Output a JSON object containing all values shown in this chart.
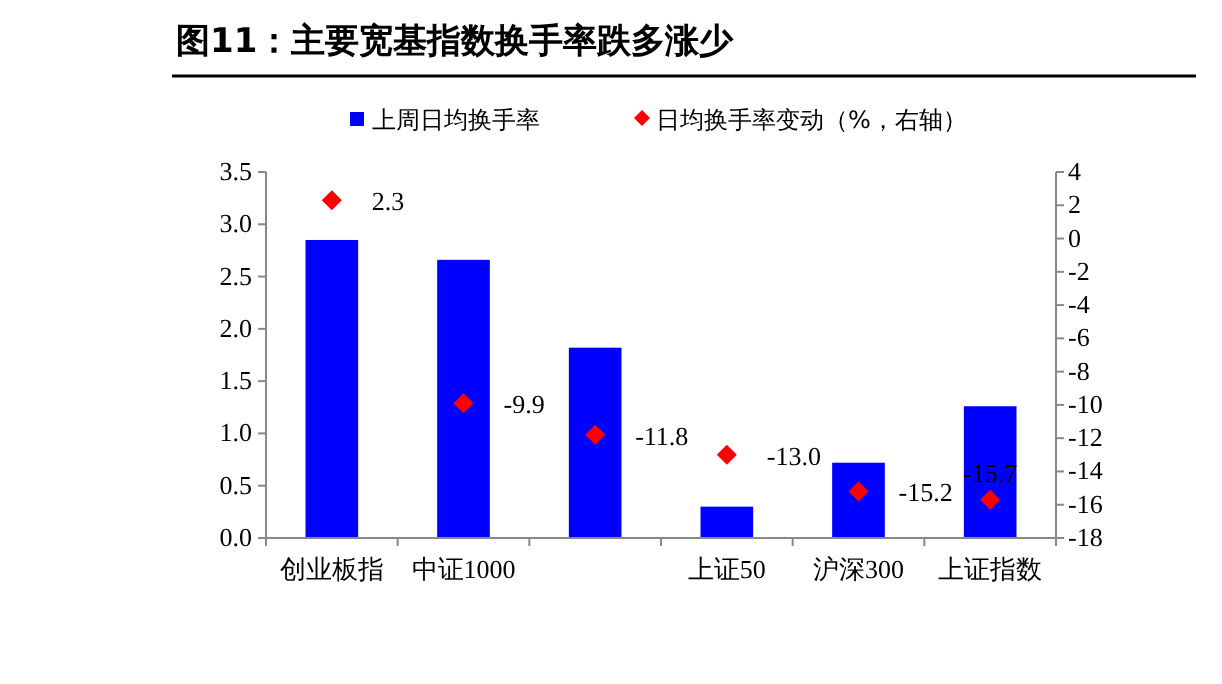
{
  "chart_data": {
    "type": "bar",
    "title": "图11：主要宽基指数换手率跌多涨少",
    "categories": [
      "创业板指",
      "中证1000",
      null,
      "上证50",
      "沪深300",
      "上证指数"
    ],
    "series": [
      {
        "name": "上周日均换手率",
        "color": "#0000ff",
        "values": [
          2.85,
          2.66,
          1.82,
          0.3,
          0.72,
          1.26
        ]
      },
      {
        "name": "日均换手率变动（%，右轴）",
        "type": "scatter",
        "axis": "y2",
        "color": "#ff0000",
        "marker": "diamond",
        "values": [
          2.3,
          -9.9,
          -11.8,
          -13.0,
          -15.2,
          -15.7
        ],
        "value_labels": [
          "2.3",
          "-9.9",
          "-11.8",
          "-13.0",
          "-15.2",
          "-15.7"
        ]
      }
    ],
    "ylim": [
      0,
      3.5
    ],
    "yticks": [
      {
        "value": 0,
        "label": "0.0"
      },
      {
        "value": 0.5,
        "label": "0.5"
      },
      {
        "value": 1,
        "label": "1.0"
      },
      {
        "value": 1.5,
        "label": "1.5"
      },
      {
        "value": 2,
        "label": "2.0"
      },
      {
        "value": 2.5,
        "label": "2.5"
      },
      {
        "value": 3,
        "label": "3.0"
      },
      {
        "value": 3.5,
        "label": "3.5"
      }
    ],
    "y2lim": [
      -18,
      4
    ],
    "y2ticks": [
      -18,
      -16,
      -14,
      -12,
      -10,
      -8,
      -6,
      -4,
      -2,
      0,
      2,
      4
    ],
    "legend": "top",
    "grid": false
  }
}
